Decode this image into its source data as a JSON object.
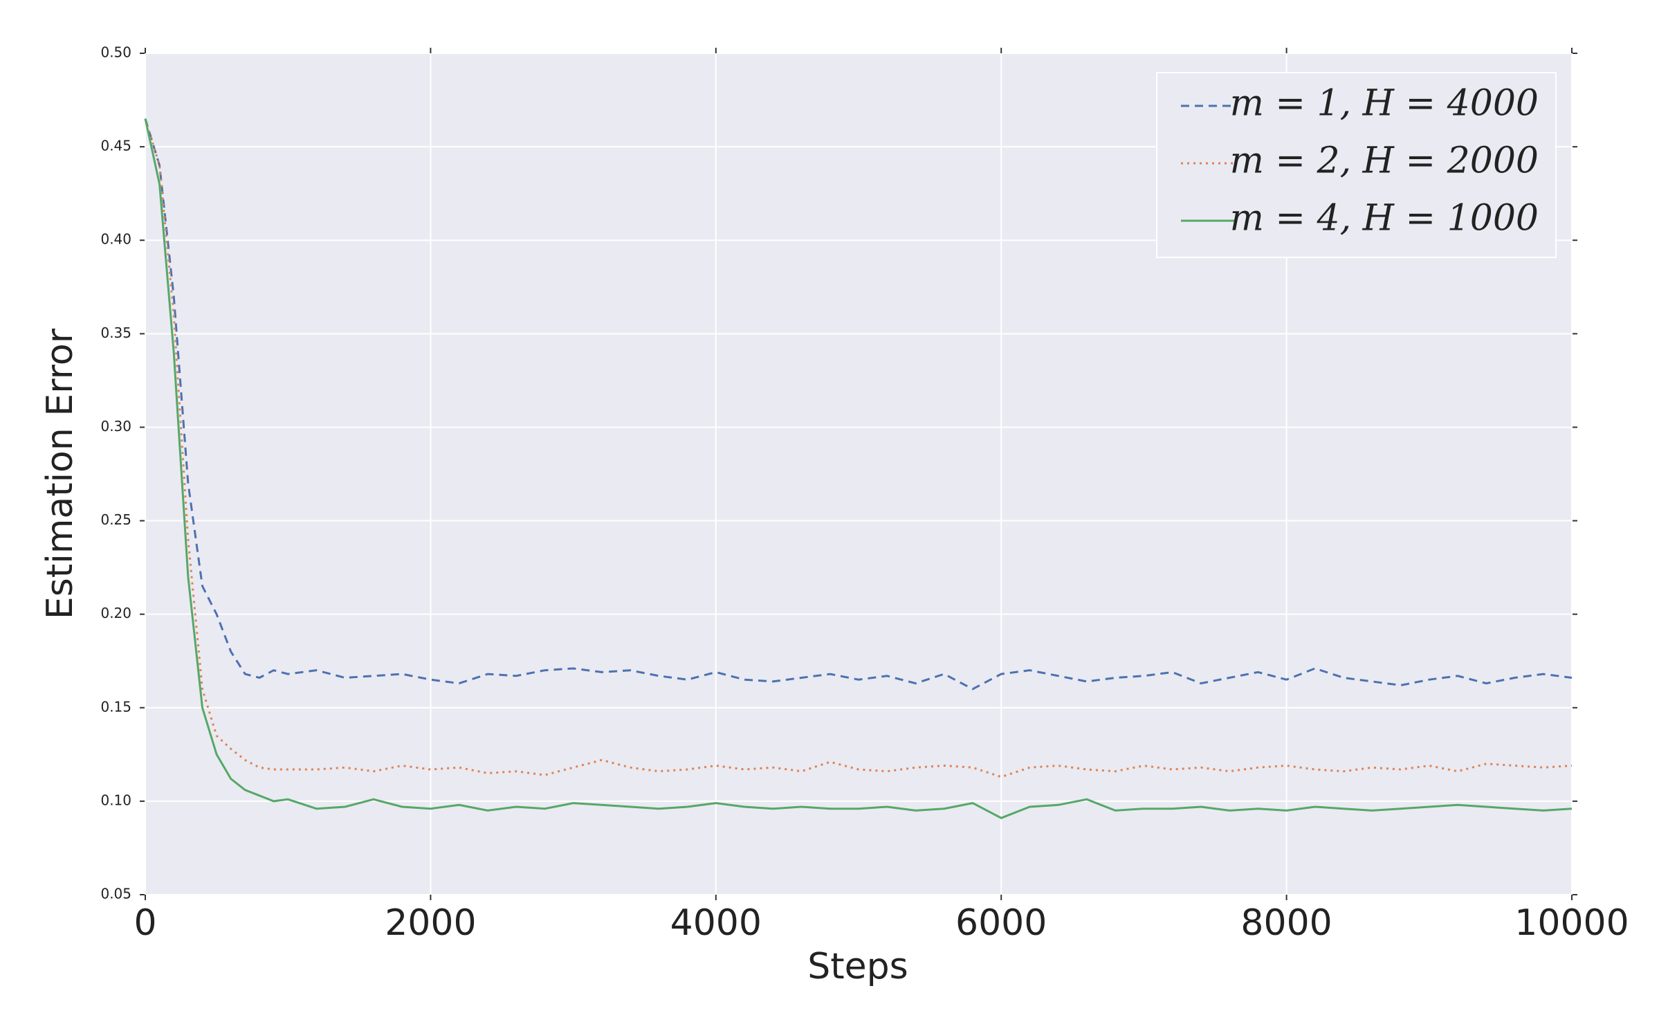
{
  "chart_data": {
    "type": "line",
    "xlabel": "Steps",
    "ylabel": "Estimation Error",
    "x": [
      0,
      100,
      200,
      300,
      400,
      500,
      600,
      700,
      800,
      900,
      1000,
      1200,
      1400,
      1600,
      1800,
      2000,
      2200,
      2400,
      2600,
      2800,
      3000,
      3200,
      3400,
      3600,
      3800,
      4000,
      4200,
      4400,
      4600,
      4800,
      5000,
      5200,
      5400,
      5600,
      5800,
      6000,
      6200,
      6400,
      6600,
      6800,
      7000,
      7200,
      7400,
      7600,
      7800,
      8000,
      8200,
      8400,
      8600,
      8800,
      9000,
      9200,
      9400,
      9600,
      9800,
      10000
    ],
    "series": [
      {
        "name": "m = 1, H = 4000",
        "color": "#4c72b0",
        "linestyle": "dashed",
        "values": [
          0.465,
          0.44,
          0.37,
          0.27,
          0.215,
          0.2,
          0.18,
          0.168,
          0.166,
          0.17,
          0.168,
          0.17,
          0.166,
          0.167,
          0.168,
          0.165,
          0.163,
          0.168,
          0.167,
          0.17,
          0.171,
          0.169,
          0.17,
          0.167,
          0.165,
          0.169,
          0.165,
          0.164,
          0.166,
          0.168,
          0.165,
          0.167,
          0.163,
          0.168,
          0.16,
          0.168,
          0.17,
          0.167,
          0.164,
          0.166,
          0.167,
          0.169,
          0.163,
          0.166,
          0.169,
          0.165,
          0.171,
          0.166,
          0.164,
          0.162,
          0.165,
          0.167,
          0.163,
          0.166,
          0.168,
          0.166
        ]
      },
      {
        "name": "m = 2, H = 2000",
        "color": "#dd8452",
        "linestyle": "dotted",
        "values": [
          0.465,
          0.44,
          0.36,
          0.24,
          0.16,
          0.135,
          0.128,
          0.122,
          0.118,
          0.117,
          0.117,
          0.117,
          0.118,
          0.116,
          0.119,
          0.117,
          0.118,
          0.115,
          0.116,
          0.114,
          0.118,
          0.122,
          0.118,
          0.116,
          0.117,
          0.119,
          0.117,
          0.118,
          0.116,
          0.121,
          0.117,
          0.116,
          0.118,
          0.119,
          0.118,
          0.113,
          0.118,
          0.119,
          0.117,
          0.116,
          0.119,
          0.117,
          0.118,
          0.116,
          0.118,
          0.119,
          0.117,
          0.116,
          0.118,
          0.117,
          0.119,
          0.116,
          0.12,
          0.119,
          0.118,
          0.119
        ]
      },
      {
        "name": "m = 4, H = 1000",
        "color": "#55a868",
        "linestyle": "solid",
        "values": [
          0.465,
          0.43,
          0.34,
          0.22,
          0.15,
          0.125,
          0.112,
          0.106,
          0.103,
          0.1,
          0.101,
          0.096,
          0.097,
          0.101,
          0.097,
          0.096,
          0.098,
          0.095,
          0.097,
          0.096,
          0.099,
          0.098,
          0.097,
          0.096,
          0.097,
          0.099,
          0.097,
          0.096,
          0.097,
          0.096,
          0.096,
          0.097,
          0.095,
          0.096,
          0.099,
          0.091,
          0.097,
          0.098,
          0.101,
          0.095,
          0.096,
          0.096,
          0.097,
          0.095,
          0.096,
          0.095,
          0.097,
          0.096,
          0.095,
          0.096,
          0.097,
          0.098,
          0.097,
          0.096,
          0.095,
          0.096
        ]
      }
    ],
    "xlim": [
      0,
      10000
    ],
    "xticks": [
      0,
      2000,
      4000,
      6000,
      8000,
      10000
    ],
    "ylim": [
      0.05,
      0.5
    ],
    "yticks": [
      0.05,
      {
        "value": 0.1,
        "label": "0.10"
      },
      0.15,
      {
        "value": 0.2,
        "label": "0.20"
      },
      0.25,
      {
        "value": 0.3,
        "label": "0.30"
      },
      0.35,
      {
        "value": 0.4,
        "label": "0.40"
      },
      0.45,
      {
        "value": 0.5,
        "label": "0.50"
      }
    ],
    "grid": true,
    "legend": "upper right"
  }
}
